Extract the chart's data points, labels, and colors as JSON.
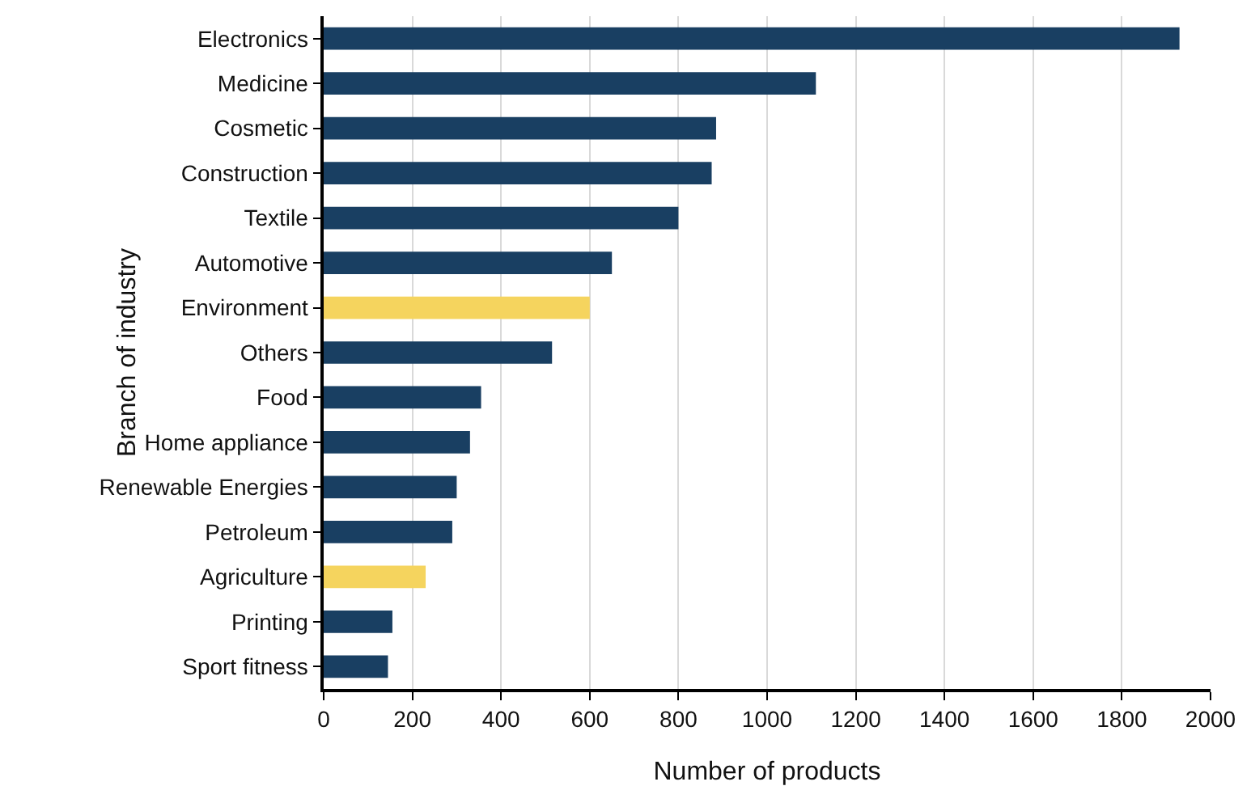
{
  "chart_data": {
    "type": "bar",
    "orientation": "horizontal",
    "xlabel": "Number of products",
    "ylabel": "Branch of industry",
    "categories": [
      "Electronics",
      "Medicine",
      "Cosmetic",
      "Construction",
      "Textile",
      "Automotive",
      "Environment",
      "Others",
      "Food",
      "Home appliance",
      "Renewable Energies",
      "Petroleum",
      "Agriculture",
      "Printing",
      "Sport fitness"
    ],
    "values": [
      1930,
      1110,
      885,
      875,
      800,
      650,
      600,
      515,
      355,
      330,
      300,
      290,
      230,
      155,
      145
    ],
    "colors": [
      "#193f62",
      "#193f62",
      "#193f62",
      "#193f62",
      "#193f62",
      "#193f62",
      "#f5d45e",
      "#193f62",
      "#193f62",
      "#193f62",
      "#193f62",
      "#193f62",
      "#f5d45e",
      "#193f62",
      "#193f62"
    ],
    "xlim": [
      0,
      2000
    ],
    "xticks": [
      0,
      200,
      400,
      600,
      800,
      1000,
      1200,
      1400,
      1600,
      1800,
      2000
    ],
    "grid": "x"
  }
}
